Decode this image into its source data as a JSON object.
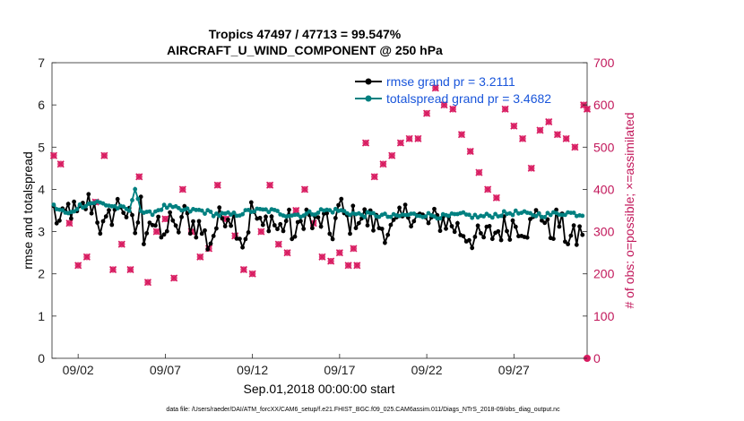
{
  "chart_data": {
    "type": "line",
    "title_line1": "Tropics 47497 / 47713 = 99.547%",
    "title_line2": "AIRCRAFT_U_WIND_COMPONENT @ 250 hPa",
    "xlabel": "Sep.01,2018 00:00:00 start",
    "ylabel_left": "rmse and totalspread",
    "ylabel_right": "# of obs: o=possible; ×=assimilated",
    "footnote": "data file: /Users/raeder/DAI/ATM_forcXX/CAM6_setup/f.e21.FHIST_BGC.f09_025.CAM6assim.011/Diags_NTrS_2018-09/obs_diag_output.nc",
    "xlim": [
      0.5,
      31.2
    ],
    "ylim_left": [
      0,
      7
    ],
    "ylim_right": [
      0,
      700
    ],
    "x_ticks": [
      2,
      7,
      12,
      17,
      22,
      27
    ],
    "x_tick_labels": [
      "09/02",
      "09/07",
      "09/12",
      "09/17",
      "09/22",
      "09/27"
    ],
    "y_ticks_left": [
      "0",
      "1",
      "2",
      "3",
      "4",
      "5",
      "6",
      "7"
    ],
    "y_ticks_right": [
      "0",
      "100",
      "200",
      "300",
      "400",
      "500",
      "600",
      "700"
    ],
    "colors": {
      "rmse": "#000000",
      "totalspread": "#008080",
      "obs": "#d81b60",
      "legend_text": "#1a56db"
    },
    "series": [
      {
        "name": "rmse grand pr = 3.2111",
        "axis": "left",
        "anchors": [
          [
            0.6,
            3.5
          ],
          [
            1.0,
            3.1
          ],
          [
            1.5,
            3.6
          ],
          [
            2.0,
            3.3
          ],
          [
            2.5,
            3.7
          ],
          [
            3.0,
            3.6
          ],
          [
            3.2,
            3.2
          ],
          [
            3.5,
            3.0
          ],
          [
            4.0,
            3.5
          ],
          [
            4.5,
            3.7
          ],
          [
            5.0,
            3.2
          ],
          [
            5.3,
            3.0
          ],
          [
            5.6,
            3.6
          ],
          [
            5.8,
            2.8
          ],
          [
            6.0,
            3.4
          ],
          [
            6.5,
            3.1
          ],
          [
            7.0,
            2.7
          ],
          [
            7.2,
            3.7
          ],
          [
            7.5,
            2.8
          ],
          [
            8.0,
            3.4
          ],
          [
            8.5,
            3.2
          ],
          [
            9.0,
            3.1
          ],
          [
            9.5,
            2.7
          ],
          [
            10.0,
            3.2
          ],
          [
            10.5,
            3.5
          ],
          [
            11.0,
            3.3
          ],
          [
            11.5,
            2.7
          ],
          [
            12.0,
            3.6
          ],
          [
            12.5,
            3.0
          ],
          [
            13.0,
            3.4
          ],
          [
            13.5,
            3.0
          ],
          [
            14.0,
            3.3
          ],
          [
            14.5,
            2.8
          ],
          [
            15.0,
            3.5
          ],
          [
            15.5,
            3.1
          ],
          [
            16.0,
            3.3
          ],
          [
            16.5,
            2.9
          ],
          [
            17.0,
            3.6
          ],
          [
            17.5,
            3.2
          ],
          [
            18.0,
            3.4
          ],
          [
            19.0,
            3.2
          ],
          [
            20.0,
            3.0
          ],
          [
            21.0,
            3.5
          ],
          [
            22.0,
            3.2
          ],
          [
            23.0,
            3.3
          ],
          [
            24.0,
            3.0
          ],
          [
            25.0,
            2.8
          ],
          [
            26.0,
            3.0
          ],
          [
            27.0,
            3.2
          ],
          [
            28.0,
            3.1
          ],
          [
            28.5,
            3.6
          ],
          [
            29.0,
            2.9
          ],
          [
            29.5,
            3.3
          ],
          [
            30.0,
            2.9
          ],
          [
            30.5,
            2.8
          ],
          [
            31.0,
            3.1
          ]
        ]
      },
      {
        "name": "totalspread grand pr = 3.4682",
        "axis": "left",
        "anchors": [
          [
            0.6,
            3.6
          ],
          [
            1.0,
            3.5
          ],
          [
            1.5,
            3.4
          ],
          [
            2.0,
            3.6
          ],
          [
            3.0,
            3.7
          ],
          [
            4.0,
            3.6
          ],
          [
            5.0,
            3.5
          ],
          [
            5.3,
            4.1
          ],
          [
            5.6,
            3.5
          ],
          [
            6.0,
            3.4
          ],
          [
            7.0,
            3.6
          ],
          [
            8.0,
            3.5
          ],
          [
            9.0,
            3.5
          ],
          [
            10.0,
            3.4
          ],
          [
            11.0,
            3.4
          ],
          [
            12.0,
            3.5
          ],
          [
            13.0,
            3.5
          ],
          [
            14.0,
            3.4
          ],
          [
            15.0,
            3.4
          ],
          [
            16.0,
            3.5
          ],
          [
            17.0,
            3.5
          ],
          [
            18.0,
            3.4
          ],
          [
            19.0,
            3.4
          ],
          [
            20.0,
            3.35
          ],
          [
            21.0,
            3.4
          ],
          [
            22.0,
            3.4
          ],
          [
            23.0,
            3.35
          ],
          [
            24.0,
            3.4
          ],
          [
            25.0,
            3.35
          ],
          [
            26.0,
            3.4
          ],
          [
            27.0,
            3.45
          ],
          [
            28.0,
            3.4
          ],
          [
            29.0,
            3.4
          ],
          [
            30.0,
            3.45
          ],
          [
            31.0,
            3.4
          ]
        ]
      }
    ],
    "obs_assimilated": {
      "axis": "right",
      "points": [
        [
          0.6,
          480
        ],
        [
          1.0,
          460
        ],
        [
          1.5,
          320
        ],
        [
          2.0,
          220
        ],
        [
          2.5,
          240
        ],
        [
          3.0,
          370
        ],
        [
          3.5,
          480
        ],
        [
          4.0,
          210
        ],
        [
          4.5,
          270
        ],
        [
          5.0,
          210
        ],
        [
          5.5,
          430
        ],
        [
          6.0,
          180
        ],
        [
          6.5,
          300
        ],
        [
          7.0,
          330
        ],
        [
          7.5,
          190
        ],
        [
          8.0,
          400
        ],
        [
          8.5,
          300
        ],
        [
          9.0,
          240
        ],
        [
          9.5,
          260
        ],
        [
          10.0,
          410
        ],
        [
          10.5,
          330
        ],
        [
          11.0,
          290
        ],
        [
          11.5,
          210
        ],
        [
          12.0,
          200
        ],
        [
          12.5,
          300
        ],
        [
          13.0,
          410
        ],
        [
          13.5,
          270
        ],
        [
          14.0,
          250
        ],
        [
          14.5,
          350
        ],
        [
          15.0,
          400
        ],
        [
          15.5,
          320
        ],
        [
          16.0,
          240
        ],
        [
          16.5,
          230
        ],
        [
          17.0,
          250
        ],
        [
          17.5,
          220
        ],
        [
          17.8,
          260
        ],
        [
          18.0,
          220
        ],
        [
          18.5,
          510
        ],
        [
          19.0,
          430
        ],
        [
          19.5,
          460
        ],
        [
          20.0,
          480
        ],
        [
          20.5,
          510
        ],
        [
          21.0,
          520
        ],
        [
          21.5,
          520
        ],
        [
          22.0,
          580
        ],
        [
          22.5,
          640
        ],
        [
          23.0,
          600
        ],
        [
          23.5,
          590
        ],
        [
          24.0,
          530
        ],
        [
          24.5,
          490
        ],
        [
          25.0,
          440
        ],
        [
          25.5,
          400
        ],
        [
          26.0,
          380
        ],
        [
          26.5,
          590
        ],
        [
          27.0,
          550
        ],
        [
          27.5,
          520
        ],
        [
          28.0,
          450
        ],
        [
          28.5,
          540
        ],
        [
          29.0,
          560
        ],
        [
          29.5,
          530
        ],
        [
          30.0,
          520
        ],
        [
          30.5,
          500
        ],
        [
          31.0,
          600
        ],
        [
          31.2,
          590
        ]
      ]
    },
    "legend": [
      "rmse grand pr = 3.2111",
      "totalspread grand pr = 3.4682"
    ],
    "legend_position": "top-right"
  }
}
